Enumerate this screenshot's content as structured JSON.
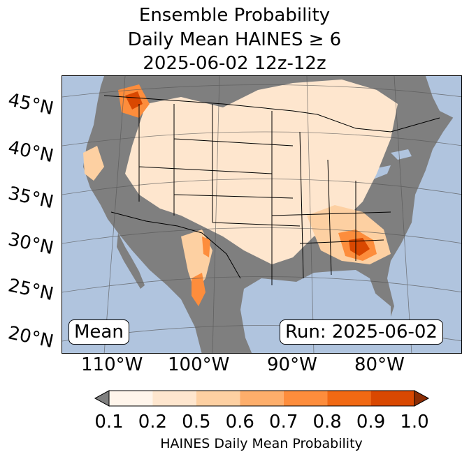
{
  "title": {
    "line1": "Ensemble Probability",
    "line2": "Daily Mean HAINES ≥ 6",
    "line3": "2025-06-02 12z-12z"
  },
  "map": {
    "region": "CONUS",
    "ocean_color": "#b0c4de",
    "land_color": "#7f7f7f",
    "lat_labels": [
      "45°N",
      "40°N",
      "35°N",
      "30°N",
      "25°N",
      "20°N"
    ],
    "lon_labels": [
      "110°W",
      "100°W",
      "90°W",
      "80°W"
    ],
    "stat_label": "Mean",
    "run_label": "Run: 2025-06-02"
  },
  "colorbar": {
    "ticks": [
      "0.1",
      "0.2",
      "0.5",
      "0.6",
      "0.7",
      "0.8",
      "0.9",
      "1.0"
    ],
    "colors": [
      "#fff5eb",
      "#fee6ce",
      "#fdd0a2",
      "#fdae6b",
      "#fd8d3c",
      "#f16913",
      "#d94801"
    ],
    "under_color": "#7f7f7f",
    "over_color": "#8c2d04",
    "label": "HAINES Daily Mean Probability"
  }
}
